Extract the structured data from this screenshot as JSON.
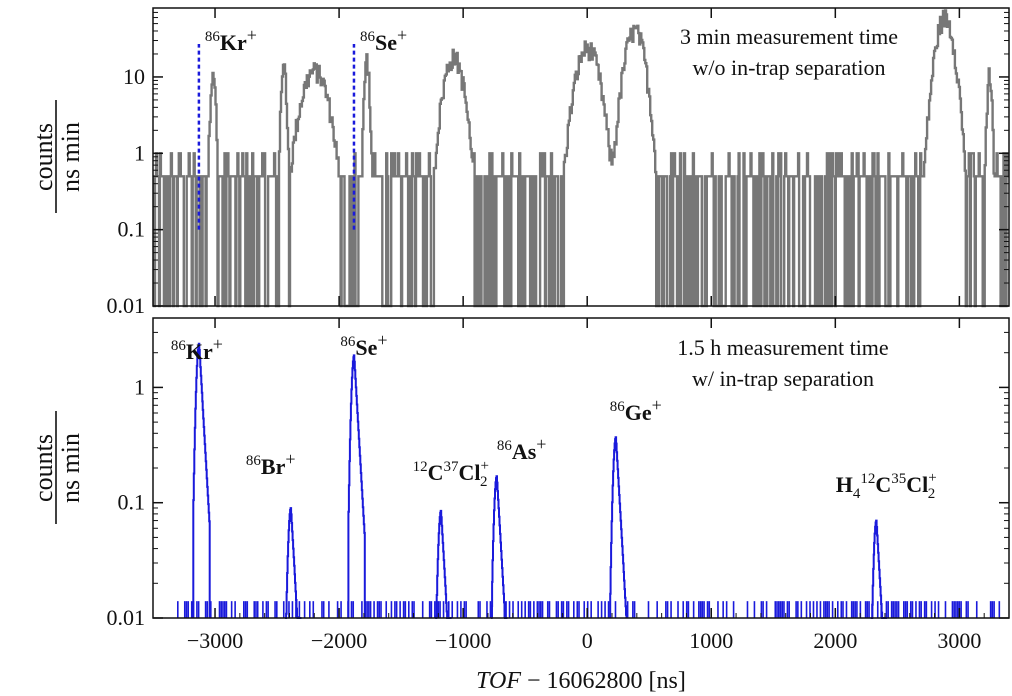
{
  "chart_data": [
    {
      "type": "histogram",
      "panel": "top",
      "ylabel_numerator": "counts",
      "ylabel_denominator": "ns min",
      "y_scale": "log",
      "ylim": [
        0.01,
        80
      ],
      "y_ticks": [
        0.01,
        0.1,
        1,
        10
      ],
      "y_tick_labels": [
        "0.01",
        "0.1",
        "1",
        "10"
      ],
      "xlim": [
        -3500,
        3400
      ],
      "annotation_line1": "3 min measurement time",
      "annotation_line2": "w/o in-trap separation",
      "series_color": "#777777",
      "noise_level": 0.5,
      "peaks": [
        {
          "x": -3020,
          "height": 13,
          "width": 15
        },
        {
          "x": -2450,
          "height": 14,
          "width": 15
        },
        {
          "x": -2200,
          "height": 12,
          "width": 80
        },
        {
          "x": -1780,
          "height": 17,
          "width": 15
        },
        {
          "x": -1080,
          "height": 18,
          "width": 60
        },
        {
          "x": 0,
          "height": 24,
          "width": 70
        },
        {
          "x": 380,
          "height": 40,
          "width": 60
        },
        {
          "x": 2880,
          "height": 60,
          "width": 55
        },
        {
          "x": 3240,
          "height": 11,
          "width": 15
        }
      ],
      "marker_lines": [
        {
          "x": -3130,
          "label_mass": "86",
          "label_element": "Kr",
          "label_charge": "+"
        },
        {
          "x": -1880,
          "label_mass": "86",
          "label_element": "Se",
          "label_charge": "+"
        }
      ],
      "marker_color": "#1a1adb"
    },
    {
      "type": "histogram",
      "panel": "bottom",
      "ylabel_numerator": "counts",
      "ylabel_denominator": "ns min",
      "y_scale": "log",
      "ylim": [
        0.01,
        4
      ],
      "y_ticks": [
        0.01,
        0.1,
        1
      ],
      "y_tick_labels": [
        "0.01",
        "0.1",
        "1"
      ],
      "xlim": [
        -3500,
        3400
      ],
      "x_ticks": [
        -3000,
        -2000,
        -1000,
        0,
        1000,
        2000,
        3000
      ],
      "x_tick_labels": [
        "−3000",
        "−2000",
        "−1000",
        "0",
        "1000",
        "2000",
        "3000"
      ],
      "xlabel_italic": "TOF",
      "xlabel_rest": " − 16062800 [ns]",
      "annotation_line1": "1.5 h measurement time",
      "annotation_line2": "w/ in-trap separation",
      "series_color": "#1a1adb",
      "peaks": [
        {
          "x": -3130,
          "height": 2.4,
          "label_mass": "86",
          "label_element": "Kr",
          "label_charge": "+"
        },
        {
          "x": -2390,
          "height": 0.09,
          "label_mass": "86",
          "label_element": "Br",
          "label_charge": "+"
        },
        {
          "x": -1880,
          "height": 1.9,
          "label_mass": "86",
          "label_element": "Se",
          "label_charge": "+"
        },
        {
          "x": -1180,
          "height": 0.085,
          "label_mass": "12",
          "label_element": "C",
          "label_mass2": "37",
          "label_element2": "Cl",
          "label_sub": "2",
          "label_charge": "+"
        },
        {
          "x": -730,
          "height": 0.17,
          "label_mass": "86",
          "label_element": "As",
          "label_charge": "+"
        },
        {
          "x": 230,
          "height": 0.37,
          "label_mass": "86",
          "label_element": "Ge",
          "label_charge": "+"
        },
        {
          "x": 2330,
          "height": 0.07,
          "label_pre": "H",
          "label_pre_sub": "4",
          "label_mass": "12",
          "label_element": "C",
          "label_mass2": "35",
          "label_element2": "Cl",
          "label_sub": "2",
          "label_charge": "+"
        }
      ],
      "background_level": 0.014
    }
  ]
}
